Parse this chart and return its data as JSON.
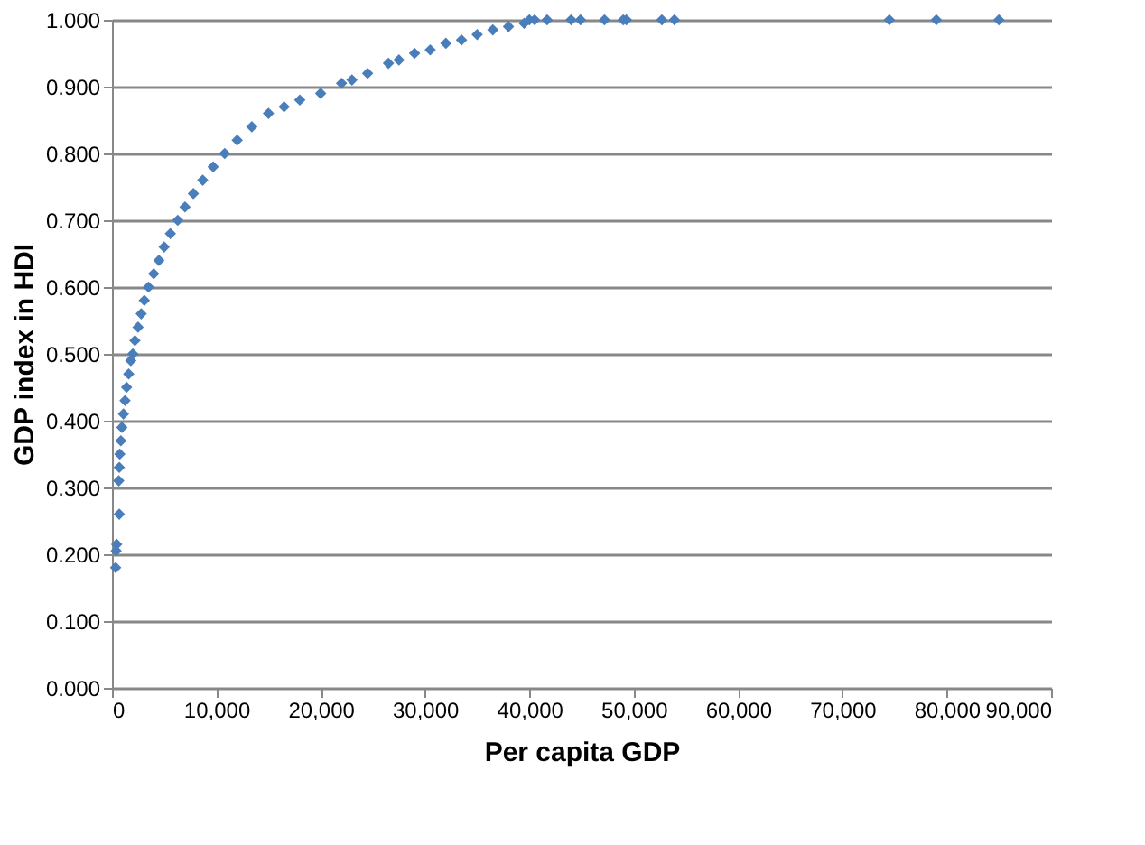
{
  "chart_data": {
    "type": "scatter",
    "xlabel": "Per capita GDP",
    "ylabel": "GDP index in HDI",
    "series": [
      {
        "color": "#4a7ebb",
        "x": [
          350,
          400,
          450,
          700,
          650,
          700,
          750,
          850,
          950,
          1100,
          1250,
          1400,
          1600,
          1800,
          2000,
          2200,
          2500,
          2800,
          3100,
          3500,
          4000,
          4500,
          5000,
          5600,
          6300,
          7000,
          7800,
          8700,
          9700,
          10800,
          12000,
          13400,
          15000,
          16500,
          18000,
          20000,
          22000,
          23000,
          24500,
          26500,
          27500,
          29000,
          30500,
          32000,
          33500,
          35000,
          36500,
          38000,
          39500,
          40000,
          40500,
          41700,
          44000,
          44900,
          47200,
          49000,
          49300,
          52700,
          53900,
          74500,
          79000,
          85000
        ],
        "values": [
          0.18,
          0.205,
          0.215,
          0.26,
          0.31,
          0.33,
          0.35,
          0.37,
          0.39,
          0.41,
          0.43,
          0.45,
          0.47,
          0.49,
          0.5,
          0.52,
          0.54,
          0.56,
          0.58,
          0.6,
          0.62,
          0.64,
          0.66,
          0.68,
          0.7,
          0.72,
          0.74,
          0.76,
          0.78,
          0.8,
          0.82,
          0.84,
          0.86,
          0.87,
          0.88,
          0.89,
          0.905,
          0.91,
          0.92,
          0.935,
          0.94,
          0.95,
          0.955,
          0.965,
          0.97,
          0.978,
          0.985,
          0.99,
          0.995,
          1.0,
          1.0,
          1.0,
          1.0,
          1.0,
          1.0,
          1.0,
          1.0,
          1.0,
          1.0,
          1.0,
          1.0,
          1.0
        ]
      }
    ],
    "xlim": [
      0,
      90000
    ],
    "xticks": [
      0,
      {
        "value": 10000,
        "label": "10,000"
      },
      {
        "value": 20000,
        "label": "20,000"
      },
      {
        "value": 30000,
        "label": "30,000"
      },
      {
        "value": 40000,
        "label": "40,000"
      },
      {
        "value": 50000,
        "label": "50,000"
      },
      {
        "value": 60000,
        "label": "60,000"
      },
      {
        "value": 70000,
        "label": "70,000"
      },
      {
        "value": 80000,
        "label": "80,000"
      },
      {
        "value": 90000,
        "label": "90,000"
      }
    ],
    "ylim": [
      0,
      1
    ],
    "yticks": [
      {
        "value": 0,
        "label": "0.000"
      },
      {
        "value": 0.1,
        "label": "0.100"
      },
      {
        "value": 0.2,
        "label": "0.200"
      },
      {
        "value": 0.3,
        "label": "0.300"
      },
      {
        "value": 0.4,
        "label": "0.400"
      },
      {
        "value": 0.5,
        "label": "0.500"
      },
      {
        "value": 0.6,
        "label": "0.600"
      },
      {
        "value": 0.7,
        "label": "0.700"
      },
      {
        "value": 0.8,
        "label": "0.800"
      },
      {
        "value": 0.9,
        "label": "0.900"
      },
      {
        "value": 1.0,
        "label": "1.000"
      }
    ],
    "grid": "y",
    "marker": "diamond"
  }
}
